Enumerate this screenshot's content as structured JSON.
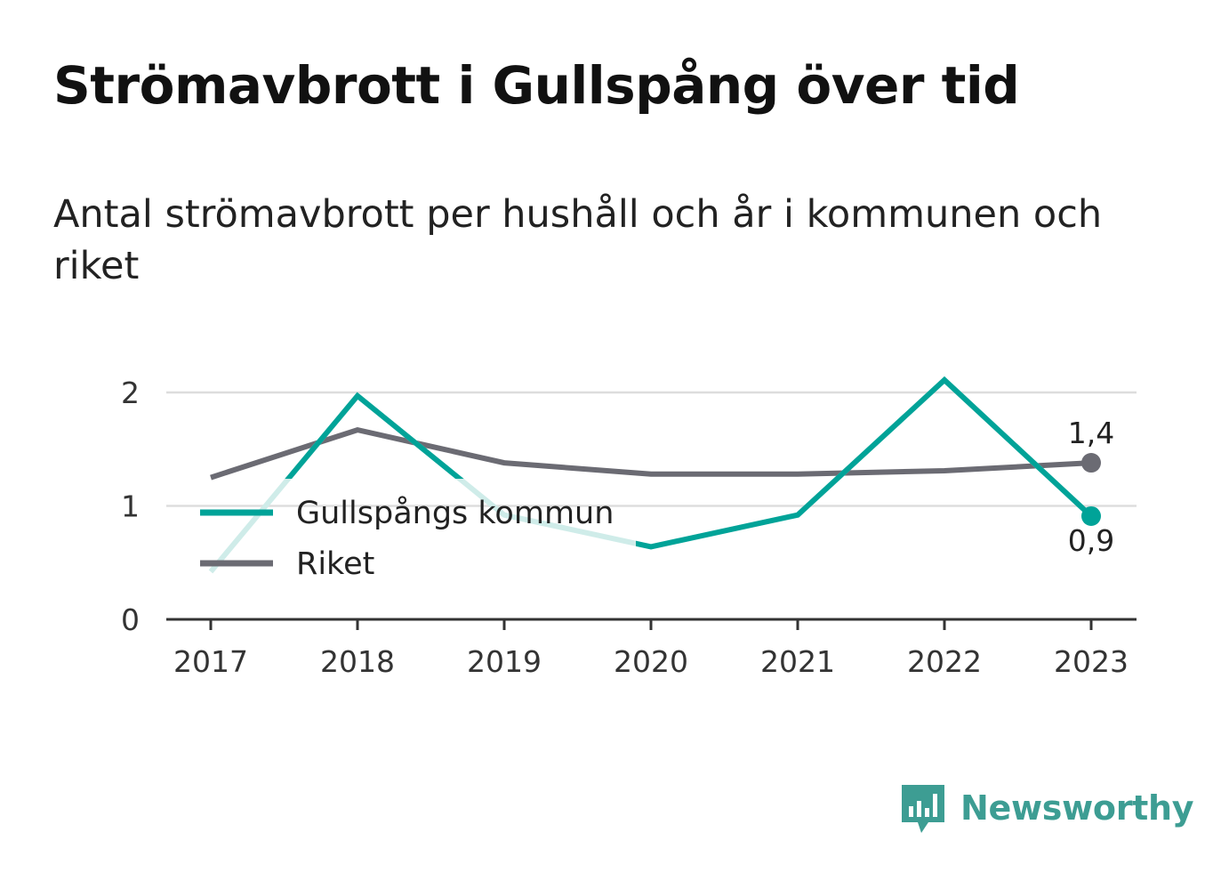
{
  "title": "Strömavbrott i Gullspång över tid",
  "subtitle": "Antal strömavbrott per hushåll och år i kommunen och riket",
  "brand": "Newsworthy",
  "colors": {
    "kommun": "#00a398",
    "riket": "#6b6b73",
    "grid": "#dddddd",
    "axis": "#333333",
    "brand": "#3d9d93"
  },
  "chart_data": {
    "type": "line",
    "categories": [
      "2017",
      "2018",
      "2019",
      "2020",
      "2021",
      "2022",
      "2023"
    ],
    "series": [
      {
        "name": "Gullspångs kommun",
        "values": [
          0.42,
          1.97,
          0.92,
          0.64,
          0.92,
          2.11,
          0.91
        ],
        "end_label": "0,9"
      },
      {
        "name": "Riket",
        "values": [
          1.25,
          1.67,
          1.38,
          1.28,
          1.28,
          1.31,
          1.38
        ],
        "end_label": "1,4"
      }
    ],
    "yticks": [
      "0",
      "1",
      "2"
    ],
    "ylim": [
      0,
      2.2
    ],
    "grid": true,
    "legend": "left"
  }
}
